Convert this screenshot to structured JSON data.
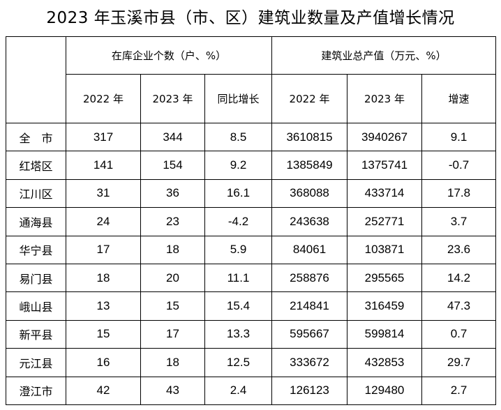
{
  "title": "2023 年玉溪市县（市、区）建筑业数量及产值增长情况",
  "header": {
    "group_enterprises": "在库企业个数（户、%）",
    "group_output": "建筑业总产值（万元、%）",
    "sub": [
      "2022 年",
      "2023 年",
      "同比增长",
      "2022 年",
      "2023 年",
      "增速"
    ]
  },
  "rows": [
    {
      "name": "全　市",
      "e2022": "317",
      "e2023": "344",
      "eg": "8.5",
      "o2022": "3610815",
      "o2023": "3940267",
      "og": "9.1"
    },
    {
      "name": "红塔区",
      "e2022": "141",
      "e2023": "154",
      "eg": "9.2",
      "o2022": "1385849",
      "o2023": "1375741",
      "og": "-0.7"
    },
    {
      "name": "江川区",
      "e2022": "31",
      "e2023": "36",
      "eg": "16.1",
      "o2022": "368088",
      "o2023": "433714",
      "og": "17.8"
    },
    {
      "name": "通海县",
      "e2022": "24",
      "e2023": "23",
      "eg": "-4.2",
      "o2022": "243638",
      "o2023": "252771",
      "og": "3.7"
    },
    {
      "name": "华宁县",
      "e2022": "17",
      "e2023": "18",
      "eg": "5.9",
      "o2022": "84061",
      "o2023": "103871",
      "og": "23.6"
    },
    {
      "name": "易门县",
      "e2022": "18",
      "e2023": "20",
      "eg": "11.1",
      "o2022": "258876",
      "o2023": "295565",
      "og": "14.2"
    },
    {
      "name": "峨山县",
      "e2022": "13",
      "e2023": "15",
      "eg": "15.4",
      "o2022": "214841",
      "o2023": "316459",
      "og": "47.3"
    },
    {
      "name": "新平县",
      "e2022": "15",
      "e2023": "17",
      "eg": "13.3",
      "o2022": "595667",
      "o2023": "599814",
      "og": "0.7"
    },
    {
      "name": "元江县",
      "e2022": "16",
      "e2023": "18",
      "eg": "12.5",
      "o2022": "333672",
      "o2023": "432853",
      "og": "29.7"
    },
    {
      "name": "澄江市",
      "e2022": "42",
      "e2023": "43",
      "eg": "2.4",
      "o2022": "126123",
      "o2023": "129480",
      "og": "2.7"
    }
  ]
}
